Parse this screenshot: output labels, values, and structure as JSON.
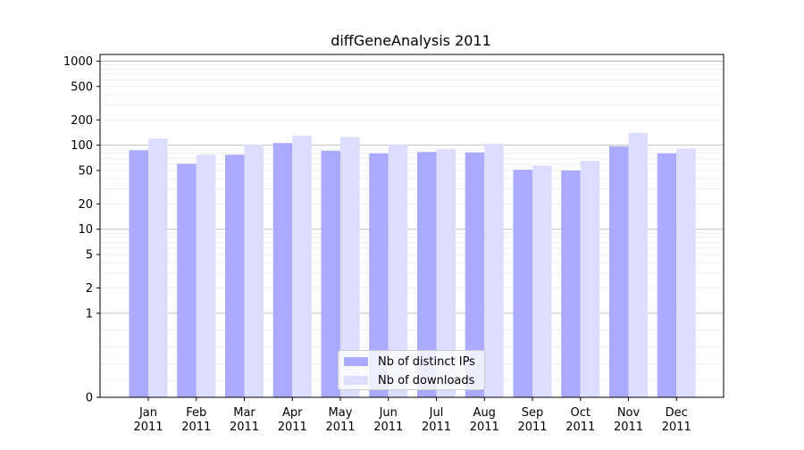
{
  "chart_data": {
    "type": "bar",
    "title": "diffGeneAnalysis 2011",
    "xlabel": "",
    "ylabel": "",
    "yscale": "symlog",
    "ylim": [
      0,
      1200
    ],
    "ytick_values": [
      0,
      1,
      2,
      5,
      10,
      20,
      50,
      100,
      200,
      500,
      1000
    ],
    "ytick_labels": [
      "0",
      "1",
      "2",
      "5",
      "10",
      "20",
      "50",
      "100",
      "200",
      "500",
      "1000"
    ],
    "categories": [
      [
        "Jan",
        "2011"
      ],
      [
        "Feb",
        "2011"
      ],
      [
        "Mar",
        "2011"
      ],
      [
        "Apr",
        "2011"
      ],
      [
        "May",
        "2011"
      ],
      [
        "Jun",
        "2011"
      ],
      [
        "Jul",
        "2011"
      ],
      [
        "Aug",
        "2011"
      ],
      [
        "Sep",
        "2011"
      ],
      [
        "Oct",
        "2011"
      ],
      [
        "Nov",
        "2011"
      ],
      [
        "Dec",
        "2011"
      ]
    ],
    "series": [
      {
        "name": "Nb of distinct IPs",
        "color": "#aaaaff",
        "values": [
          87,
          60,
          77,
          106,
          86,
          80,
          83,
          82,
          51,
          50,
          97,
          80
        ]
      },
      {
        "name": "Nb of downloads",
        "color": "#ddddff",
        "values": [
          120,
          77,
          102,
          130,
          125,
          102,
          89,
          104,
          57,
          65,
          140,
          91
        ]
      }
    ],
    "grid": true,
    "legend_position": "lower-center"
  }
}
